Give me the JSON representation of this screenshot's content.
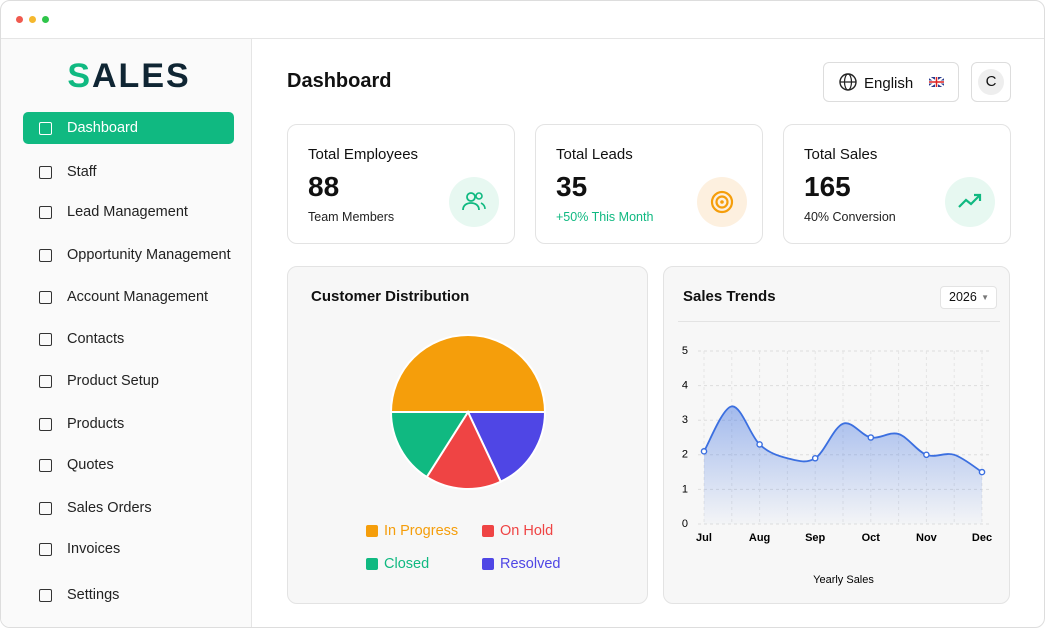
{
  "sidebar": {
    "logo": "SALES",
    "nav": [
      "Dashboard",
      "Staff",
      "Lead Management",
      "Opportunity Management",
      "Account Management",
      "Contacts",
      "Product Setup",
      "Products",
      "Quotes",
      "Sales Orders",
      "Invoices",
      "Settings"
    ],
    "active": 0
  },
  "header": {
    "title": "Dashboard",
    "language": "English",
    "avatar": "C"
  },
  "cards": [
    {
      "title": "Total Employees",
      "value": 88,
      "note": "Team Members"
    },
    {
      "title": "Total Leads",
      "value": 35,
      "note": "+50% This Month"
    },
    {
      "title": "Total Sales",
      "value": 165,
      "note": "40% Conversion"
    }
  ],
  "customer_distribution": {
    "title": "Customer Distribution",
    "chart_data": {
      "type": "pie",
      "categories": [
        "In Progress",
        "On Hold",
        "Closed",
        "Resolved"
      ],
      "values": [
        50,
        16,
        16,
        18
      ],
      "colors": [
        "#f59e0b",
        "#ef4444",
        "#10b981",
        "#4f46e5"
      ]
    }
  },
  "sales_trends": {
    "title": "Sales Trends",
    "year": "2026",
    "chart_data": {
      "type": "line",
      "categories": [
        "Jul",
        null,
        "Aug",
        null,
        "Sep",
        null,
        "Oct",
        null,
        "Nov",
        null,
        "Dec"
      ],
      "values": [
        2.1,
        3.4,
        2.3,
        1.9,
        1.9,
        2.9,
        2.5,
        2.6,
        2.0,
        2.0,
        1.5
      ],
      "color": "#3b6fe0",
      "ylim": [
        0,
        5
      ],
      "yticks": [
        0,
        1,
        2,
        3,
        4,
        5
      ],
      "x_label": "Yearly Sales",
      "grid": true
    }
  }
}
